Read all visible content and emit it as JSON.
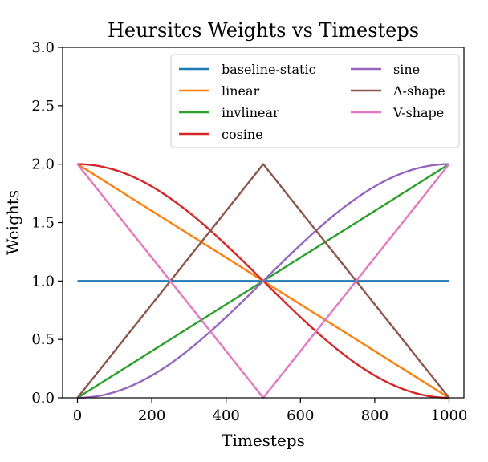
{
  "chart_data": {
    "type": "line",
    "title": "Heursitcs Weights vs Timesteps",
    "xlabel": "Timesteps",
    "ylabel": "Weights",
    "xlim": [
      -40,
      1040
    ],
    "ylim": [
      0,
      3
    ],
    "xticks": [
      0,
      200,
      400,
      600,
      800,
      1000
    ],
    "yticks": [
      0,
      0.5,
      1,
      1.5,
      2,
      2.5,
      3
    ],
    "xtick_labels": [
      "0",
      "200",
      "400",
      "600",
      "800",
      "1000"
    ],
    "ytick_labels": [
      "0.0",
      "0.5",
      "1.0",
      "1.5",
      "2.0",
      "2.5",
      "3.0"
    ],
    "legend_position": "top-right",
    "legend_columns": 2,
    "x": [
      0,
      500,
      1000
    ],
    "series": [
      {
        "name": "baseline-static",
        "color": "#1f77b4",
        "formula": "constant",
        "values": [
          1,
          1,
          1
        ]
      },
      {
        "name": "linear",
        "color": "#ff7f0e",
        "formula": "linear-decreasing",
        "values": [
          2,
          1,
          0
        ]
      },
      {
        "name": "invlinear",
        "color": "#2ca02c",
        "formula": "linear-increasing",
        "values": [
          0,
          1,
          2
        ]
      },
      {
        "name": "cosine",
        "color": "#d62728",
        "formula": "cosine",
        "values": [
          2,
          1,
          0
        ]
      },
      {
        "name": "sine",
        "color": "#9467bd",
        "formula": "sine",
        "values": [
          0,
          1,
          2
        ]
      },
      {
        "name": "Λ-shape",
        "color": "#8c564b",
        "formula": "lambda",
        "values": [
          0,
          2,
          0
        ]
      },
      {
        "name": "V-shape",
        "color": "#e377c2",
        "formula": "v",
        "values": [
          2,
          0,
          2
        ]
      }
    ]
  }
}
